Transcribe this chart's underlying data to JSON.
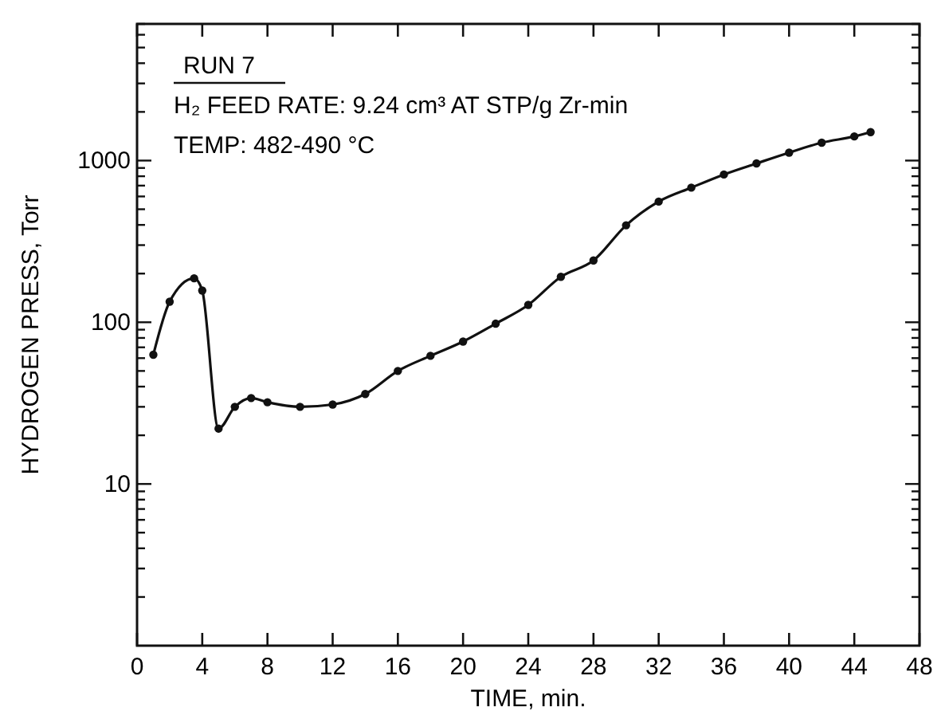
{
  "chart_data": {
    "type": "line",
    "xlabel": "TIME, min.",
    "ylabel": "HYDROGEN PRESS, Torr",
    "log": "y",
    "marker": "circle",
    "line_style": "solid",
    "annotations": [
      "RUN 7",
      "H₂ FEED RATE: 9.24 cm³ AT STP/g Zr-min",
      "TEMP: 482-490 °C"
    ],
    "xlim": [
      0,
      48
    ],
    "xticks": [
      0,
      4,
      8,
      12,
      16,
      20,
      24,
      28,
      32,
      36,
      40,
      44,
      48
    ],
    "ylim": [
      1,
      7000
    ],
    "yticks": [
      {
        "value": 2,
        "label": null
      },
      {
        "value": 3,
        "label": null
      },
      {
        "value": 4,
        "label": null
      },
      {
        "value": 5,
        "label": null
      },
      {
        "value": 6,
        "label": null
      },
      {
        "value": 7,
        "label": null
      },
      {
        "value": 8,
        "label": null
      },
      {
        "value": 9,
        "label": null
      },
      10,
      {
        "value": 20,
        "label": null
      },
      {
        "value": 30,
        "label": null
      },
      {
        "value": 40,
        "label": null
      },
      {
        "value": 50,
        "label": null
      },
      {
        "value": 60,
        "label": null
      },
      {
        "value": 70,
        "label": null
      },
      {
        "value": 80,
        "label": null
      },
      {
        "value": 90,
        "label": null
      },
      100,
      {
        "value": 200,
        "label": null
      },
      {
        "value": 300,
        "label": null
      },
      {
        "value": 400,
        "label": null
      },
      {
        "value": 500,
        "label": null
      },
      {
        "value": 600,
        "label": null
      },
      {
        "value": 700,
        "label": null
      },
      {
        "value": 800,
        "label": null
      },
      {
        "value": 900,
        "label": null
      },
      1000,
      {
        "value": 2000,
        "label": null
      },
      {
        "value": 3000,
        "label": null
      },
      {
        "value": 4000,
        "label": null
      },
      {
        "value": 5000,
        "label": null
      },
      {
        "value": 6000,
        "label": null
      },
      {
        "value": 7000,
        "label": null
      }
    ],
    "series": [
      {
        "color": "#111111",
        "x": [
          1,
          2,
          3.5,
          4,
          5,
          6,
          7,
          8,
          10,
          12,
          14,
          16,
          18,
          20,
          22,
          24,
          26,
          28,
          30,
          32,
          34,
          36,
          38,
          40,
          42,
          44,
          45
        ],
        "values": [
          63,
          134,
          187,
          157,
          22,
          30,
          34,
          32,
          30,
          31,
          36,
          50,
          62,
          76,
          98,
          128,
          191,
          241,
          398,
          558,
          680,
          820,
          960,
          1120,
          1290,
          1410,
          1500
        ]
      }
    ]
  }
}
